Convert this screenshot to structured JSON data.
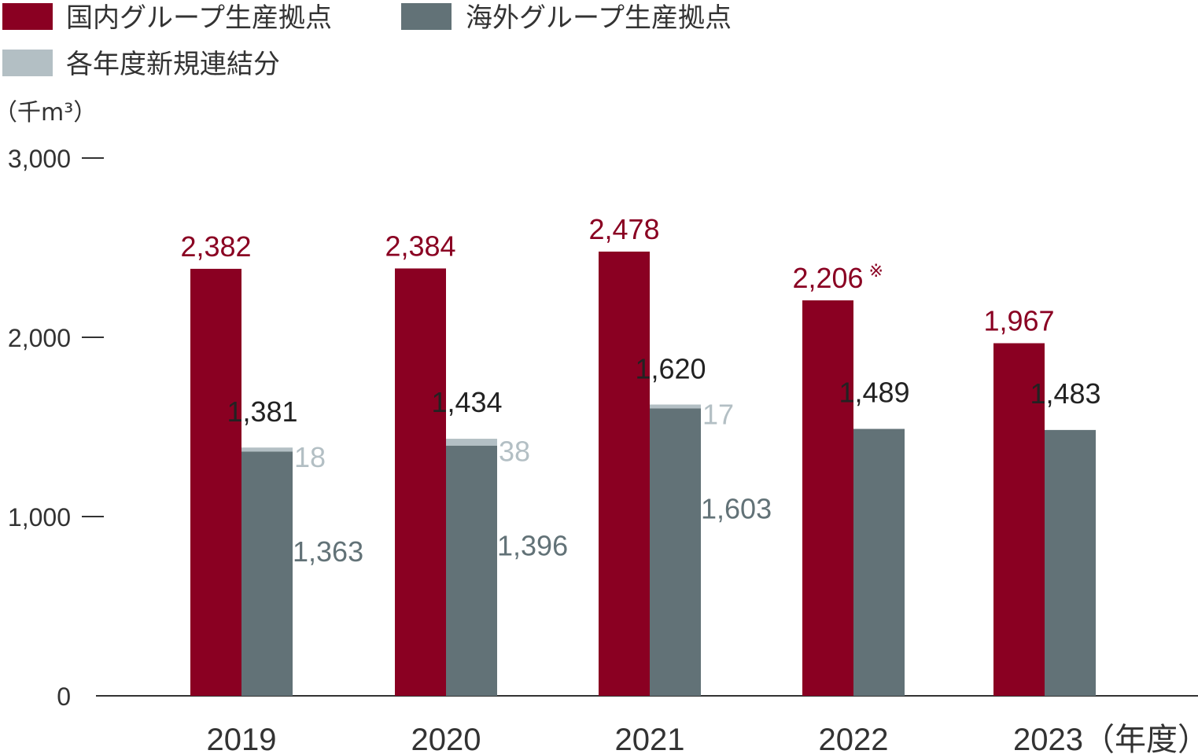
{
  "chart_data": {
    "type": "bar",
    "categories": [
      "2019",
      "2020",
      "2021",
      "2022",
      "2023"
    ],
    "x_suffix": "（年度）",
    "unit": "（千m³）",
    "ylim": [
      0,
      3000
    ],
    "yticks": [
      "0",
      "1,000",
      "2,000",
      "3,000"
    ],
    "ytick_values": [
      0,
      1000,
      2000,
      3000
    ],
    "grid": false,
    "legend_position": "top-left",
    "colors": {
      "domestic": "#8a0022",
      "overseas": "#627277",
      "new": "#b3bfc4"
    },
    "series": [
      {
        "name": "国内グループ生産拠点",
        "values": [
          2382,
          2384,
          2478,
          2206,
          1967
        ],
        "labels": [
          "2,382",
          "2,384",
          "2,478",
          "2,206",
          "1,967"
        ]
      },
      {
        "name": "海外グループ生産拠点",
        "values": [
          1363,
          1396,
          1603,
          1489,
          1483
        ],
        "labels": [
          "1,363",
          "1,396",
          "1,603",
          "",
          ""
        ]
      },
      {
        "name": "各年度新規連結分",
        "values": [
          18,
          38,
          17,
          0,
          0
        ],
        "labels": [
          "18",
          "38",
          "17",
          "",
          ""
        ]
      }
    ],
    "overseas_totals": [
      1381,
      1434,
      1620,
      1489,
      1483
    ],
    "overseas_total_labels": [
      "1,381",
      "1,434",
      "1,620",
      "1,489",
      "1,483"
    ],
    "annotations": [
      {
        "category": "2022",
        "text": "※"
      }
    ]
  }
}
